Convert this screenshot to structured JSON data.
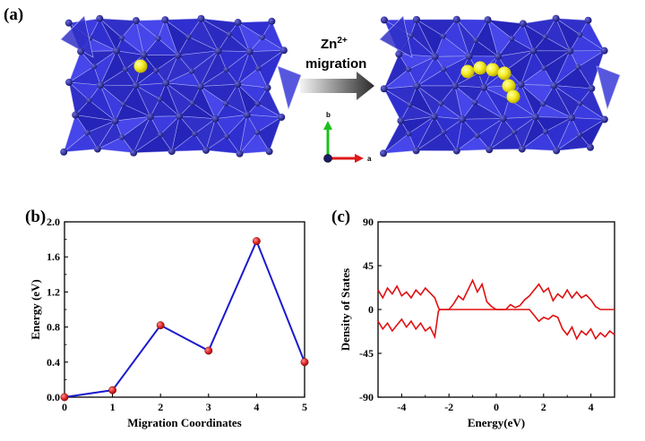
{
  "panels": {
    "a": {
      "label": "(a)",
      "arrow_text_top": "Zn",
      "arrow_text_sup": "2+",
      "arrow_text_bottom": "migration",
      "axis_b": "b",
      "axis_a": "a",
      "colors": {
        "polyhedra": "#3a3ad8",
        "zn": "#f2ea1a",
        "o_atoms": "#24248a"
      }
    },
    "b": {
      "label": "(b)"
    },
    "c": {
      "label": "(c)"
    }
  },
  "chart_data": [
    {
      "type": "line",
      "panel": "(b)",
      "title": "",
      "xlabel": "Migration Coordinates",
      "ylabel": "Energy (eV)",
      "xlim": [
        0,
        5
      ],
      "ylim": [
        0.0,
        2.0
      ],
      "xticks": [
        "0",
        "1",
        "2",
        "3",
        "4",
        "5"
      ],
      "yticks": [
        "0.0",
        "0.4",
        "0.8",
        "1.2",
        "1.6",
        "2.0"
      ],
      "x": [
        0,
        1,
        2,
        3,
        4,
        5
      ],
      "series": [
        {
          "values": [
            0.0,
            0.08,
            0.82,
            0.53,
            1.78,
            0.4
          ],
          "line_color": "#1a1acc",
          "marker_color": "#e02020"
        }
      ],
      "grid": false
    },
    {
      "type": "line",
      "panel": "(c)",
      "title": "",
      "xlabel": "Energy(eV)",
      "ylabel": "Density of States",
      "xlim": [
        -5,
        5
      ],
      "ylim": [
        -90,
        90
      ],
      "xticks": [
        "-4",
        "-2",
        "0",
        "2",
        "4"
      ],
      "yticks": [
        "90",
        "45",
        "0",
        "-45",
        "-90"
      ],
      "color": "#e01010",
      "series": [
        {
          "x": [
            -5.0,
            -4.8,
            -4.6,
            -4.4,
            -4.2,
            -4.0,
            -3.8,
            -3.6,
            -3.4,
            -3.2,
            -3.0,
            -2.8,
            -2.6,
            -2.45,
            -2.4,
            -2.2,
            -2.0,
            -1.8,
            -1.6,
            -1.4,
            -1.2,
            -1.0,
            -0.8,
            -0.6,
            -0.4,
            -0.2,
            0.0,
            0.2,
            0.4,
            0.6,
            0.8,
            1.0,
            1.2,
            1.4,
            1.6,
            1.8,
            2.0,
            2.2,
            2.4,
            2.6,
            2.8,
            3.0,
            3.2,
            3.4,
            3.6,
            3.8,
            4.0,
            4.2,
            4.4,
            4.6,
            4.8,
            5.0
          ],
          "values": [
            20,
            12,
            22,
            16,
            24,
            14,
            18,
            12,
            20,
            15,
            22,
            17,
            12,
            2,
            0,
            0,
            0,
            6,
            14,
            10,
            20,
            30,
            18,
            26,
            8,
            3,
            0,
            0,
            0,
            5,
            2,
            4,
            10,
            14,
            20,
            26,
            18,
            22,
            9,
            16,
            12,
            20,
            12,
            18,
            12,
            15,
            10,
            3,
            0,
            0,
            0,
            0
          ]
        },
        {
          "x": [
            -5.0,
            -4.8,
            -4.6,
            -4.4,
            -4.2,
            -4.0,
            -3.8,
            -3.6,
            -3.4,
            -3.2,
            -3.0,
            -2.8,
            -2.6,
            -2.45,
            -2.4,
            -2.2,
            -2.0,
            -1.8,
            -1.6,
            -1.4,
            -1.2,
            -1.0,
            -0.8,
            -0.6,
            -0.4,
            -0.2,
            0.0,
            0.2,
            0.4,
            0.6,
            0.8,
            1.0,
            1.2,
            1.4,
            1.6,
            1.8,
            2.0,
            2.2,
            2.4,
            2.6,
            2.8,
            3.0,
            3.2,
            3.4,
            3.6,
            3.8,
            4.0,
            4.2,
            4.4,
            4.6,
            4.8,
            5.0
          ],
          "values": [
            -12,
            -20,
            -14,
            -22,
            -16,
            -10,
            -18,
            -12,
            -20,
            -14,
            -22,
            -18,
            -28,
            -2,
            0,
            0,
            0,
            0,
            0,
            0,
            0,
            0,
            0,
            0,
            0,
            0,
            0,
            0,
            0,
            0,
            0,
            0,
            0,
            0,
            -6,
            -12,
            -8,
            -10,
            -6,
            -8,
            -20,
            -26,
            -18,
            -30,
            -22,
            -26,
            -20,
            -30,
            -24,
            -28,
            -22,
            -26
          ]
        }
      ],
      "grid": false
    }
  ]
}
